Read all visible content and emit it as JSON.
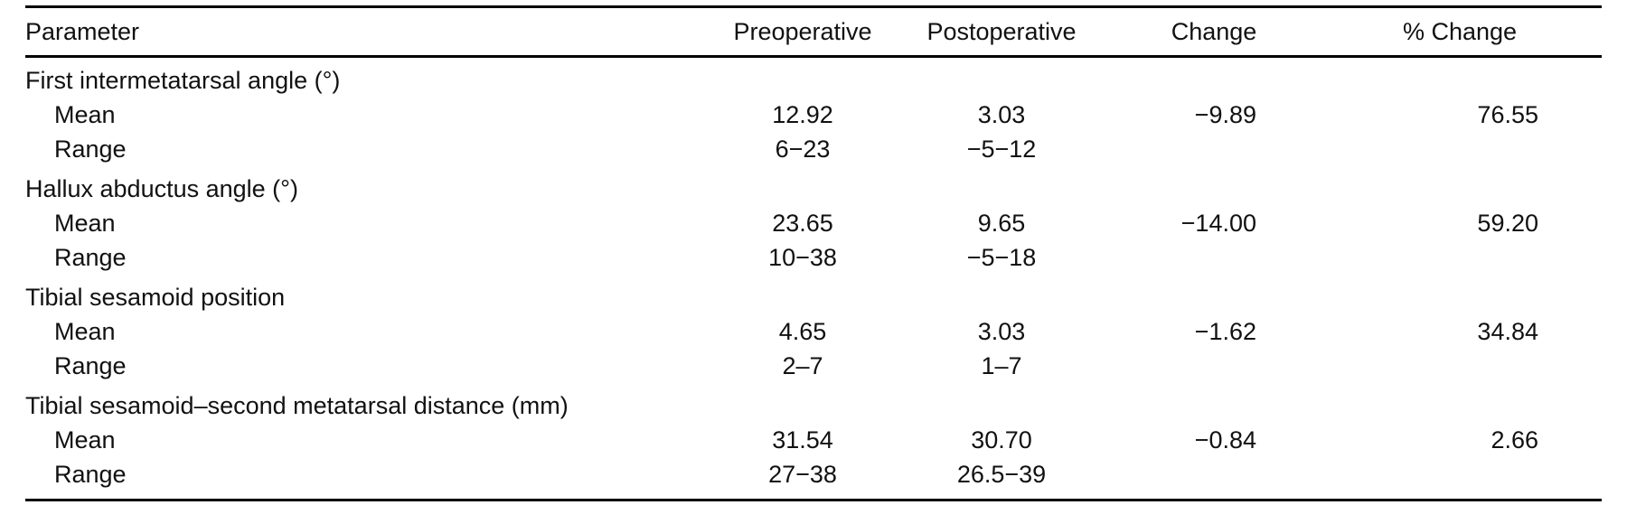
{
  "table": {
    "headers": {
      "parameter": "Parameter",
      "preoperative": "Preoperative",
      "postoperative": "Postoperative",
      "change": "Change",
      "pct_change": "% Change"
    },
    "groups": [
      {
        "title": "First intermetatarsal angle (°)",
        "mean": {
          "label": "Mean",
          "pre": "12.92",
          "post": "3.03",
          "change": "−9.89",
          "pct": "76.55"
        },
        "range": {
          "label": "Range",
          "pre": "6−23",
          "post": "−5−12"
        }
      },
      {
        "title": "Hallux abductus angle (°)",
        "mean": {
          "label": "Mean",
          "pre": "23.65",
          "post": "9.65",
          "change": "−14.00",
          "pct": "59.20"
        },
        "range": {
          "label": "Range",
          "pre": "10−38",
          "post": "−5−18"
        }
      },
      {
        "title": "Tibial sesamoid position",
        "mean": {
          "label": "Mean",
          "pre": "4.65",
          "post": "3.03",
          "change": "−1.62",
          "pct": "34.84"
        },
        "range": {
          "label": "Range",
          "pre": "2–7",
          "post": "1–7"
        }
      },
      {
        "title": "Tibial sesamoid–second metatarsal distance (mm)",
        "mean": {
          "label": "Mean",
          "pre": "31.54",
          "post": "30.70",
          "change": "−0.84",
          "pct": "2.66"
        },
        "range": {
          "label": "Range",
          "pre": "27−38",
          "post": "26.5−39"
        }
      }
    ]
  }
}
